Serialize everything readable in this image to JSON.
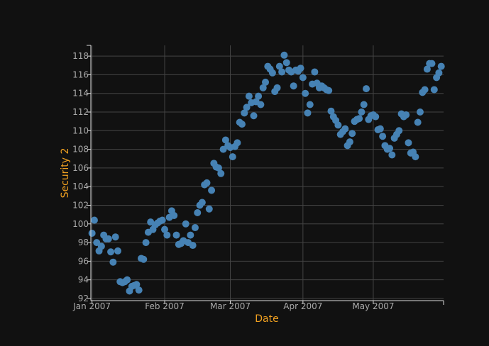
{
  "chart_data": {
    "type": "scatter",
    "xlabel": "Date",
    "ylabel": "Security 2",
    "xlim": [
      "2006-12-31T12:00:00",
      "2007-05-31T00:00:00"
    ],
    "ylim": [
      91.77,
      119.15
    ],
    "grid": true,
    "colors": {
      "background": "#111111",
      "point": "#4682b4",
      "axis_title": "#f0a020",
      "tick": "#aaaaaa",
      "grid": "#444444"
    },
    "x_ticks": [
      {
        "date": "2007-01-01",
        "label": "Jan 2007"
      },
      {
        "date": "2007-02-01",
        "label": "Feb 2007"
      },
      {
        "date": "2007-03-01",
        "label": "Mar 2007"
      },
      {
        "date": "2007-04-01",
        "label": "Apr 2007"
      },
      {
        "date": "2007-05-01",
        "label": "May 2007"
      }
    ],
    "y_ticks": [
      {
        "value": 92,
        "label": "92"
      },
      {
        "value": 94,
        "label": "94"
      },
      {
        "value": 96,
        "label": "96"
      },
      {
        "value": 98,
        "label": "98"
      },
      {
        "value": 100,
        "label": "100"
      },
      {
        "value": 102,
        "label": "102"
      },
      {
        "value": 104,
        "label": "104"
      },
      {
        "value": 106,
        "label": "106"
      },
      {
        "value": 108,
        "label": "108"
      },
      {
        "value": 110,
        "label": "110"
      },
      {
        "value": 112,
        "label": "112"
      },
      {
        "value": 114,
        "label": "114"
      },
      {
        "value": 116,
        "label": "116"
      },
      {
        "value": 118,
        "label": "118"
      }
    ],
    "points": [
      [
        "2007-01-01",
        99.0
      ],
      [
        "2007-01-02",
        100.4
      ],
      [
        "2007-01-03",
        98.0
      ],
      [
        "2007-01-04",
        97.1
      ],
      [
        "2007-01-05",
        97.6
      ],
      [
        "2007-01-06",
        98.8
      ],
      [
        "2007-01-07",
        98.4
      ],
      [
        "2007-01-08",
        98.4
      ],
      [
        "2007-01-09",
        97.0
      ],
      [
        "2007-01-10",
        95.9
      ],
      [
        "2007-01-11",
        98.6
      ],
      [
        "2007-01-12",
        97.1
      ],
      [
        "2007-01-13",
        93.8
      ],
      [
        "2007-01-14",
        93.7
      ],
      [
        "2007-01-15",
        93.8
      ],
      [
        "2007-01-16",
        94.0
      ],
      [
        "2007-01-17",
        92.8
      ],
      [
        "2007-01-18",
        93.3
      ],
      [
        "2007-01-19",
        93.4
      ],
      [
        "2007-01-20",
        93.5
      ],
      [
        "2007-01-21",
        92.9
      ],
      [
        "2007-01-22",
        96.3
      ],
      [
        "2007-01-23",
        96.2
      ],
      [
        "2007-01-24",
        98.0
      ],
      [
        "2007-01-25",
        99.1
      ],
      [
        "2007-01-26",
        100.2
      ],
      [
        "2007-01-27",
        99.4
      ],
      [
        "2007-01-28",
        99.9
      ],
      [
        "2007-01-29",
        100.1
      ],
      [
        "2007-01-30",
        100.3
      ],
      [
        "2007-01-31",
        100.4
      ],
      [
        "2007-02-01",
        99.4
      ],
      [
        "2007-02-02",
        98.8
      ],
      [
        "2007-02-03",
        100.7
      ],
      [
        "2007-02-04",
        101.4
      ],
      [
        "2007-02-05",
        100.9
      ],
      [
        "2007-02-06",
        98.8
      ],
      [
        "2007-02-07",
        97.8
      ],
      [
        "2007-02-08",
        97.9
      ],
      [
        "2007-02-09",
        98.2
      ],
      [
        "2007-02-10",
        100.0
      ],
      [
        "2007-02-11",
        98.0
      ],
      [
        "2007-02-12",
        98.8
      ],
      [
        "2007-02-13",
        97.7
      ],
      [
        "2007-02-14",
        99.6
      ],
      [
        "2007-02-15",
        101.2
      ],
      [
        "2007-02-16",
        102.0
      ],
      [
        "2007-02-17",
        102.3
      ],
      [
        "2007-02-18",
        104.2
      ],
      [
        "2007-02-19",
        104.4
      ],
      [
        "2007-02-20",
        101.6
      ],
      [
        "2007-02-21",
        103.6
      ],
      [
        "2007-02-22",
        106.5
      ],
      [
        "2007-02-23",
        106.1
      ],
      [
        "2007-02-24",
        106.0
      ],
      [
        "2007-02-25",
        105.4
      ],
      [
        "2007-02-26",
        108.0
      ],
      [
        "2007-02-27",
        109.0
      ],
      [
        "2007-02-28",
        108.4
      ],
      [
        "2007-03-01",
        108.2
      ],
      [
        "2007-03-02",
        107.2
      ],
      [
        "2007-03-03",
        108.3
      ],
      [
        "2007-03-04",
        108.7
      ],
      [
        "2007-03-05",
        110.9
      ],
      [
        "2007-03-06",
        110.7
      ],
      [
        "2007-03-07",
        111.9
      ],
      [
        "2007-03-08",
        112.5
      ],
      [
        "2007-03-09",
        113.7
      ],
      [
        "2007-03-10",
        113.0
      ],
      [
        "2007-03-11",
        111.6
      ],
      [
        "2007-03-12",
        113.1
      ],
      [
        "2007-03-13",
        113.7
      ],
      [
        "2007-03-14",
        112.8
      ],
      [
        "2007-03-15",
        114.6
      ],
      [
        "2007-03-16",
        115.2
      ],
      [
        "2007-03-17",
        116.9
      ],
      [
        "2007-03-18",
        116.6
      ],
      [
        "2007-03-19",
        116.2
      ],
      [
        "2007-03-20",
        114.2
      ],
      [
        "2007-03-21",
        114.6
      ],
      [
        "2007-03-22",
        116.9
      ],
      [
        "2007-03-23",
        116.3
      ],
      [
        "2007-03-24",
        118.1
      ],
      [
        "2007-03-25",
        117.3
      ],
      [
        "2007-03-26",
        116.5
      ],
      [
        "2007-03-27",
        116.3
      ],
      [
        "2007-03-28",
        114.8
      ],
      [
        "2007-03-29",
        116.5
      ],
      [
        "2007-03-30",
        116.4
      ],
      [
        "2007-03-31",
        116.7
      ],
      [
        "2007-04-01",
        115.7
      ],
      [
        "2007-04-02",
        114.0
      ],
      [
        "2007-04-03",
        111.9
      ],
      [
        "2007-04-04",
        112.8
      ],
      [
        "2007-04-05",
        115.0
      ],
      [
        "2007-04-06",
        116.3
      ],
      [
        "2007-04-07",
        115.1
      ],
      [
        "2007-04-08",
        114.6
      ],
      [
        "2007-04-09",
        114.8
      ],
      [
        "2007-04-10",
        114.6
      ],
      [
        "2007-04-11",
        114.4
      ],
      [
        "2007-04-12",
        114.3
      ],
      [
        "2007-04-13",
        112.1
      ],
      [
        "2007-04-14",
        111.5
      ],
      [
        "2007-04-15",
        111.1
      ],
      [
        "2007-04-16",
        110.6
      ],
      [
        "2007-04-17",
        109.6
      ],
      [
        "2007-04-18",
        109.9
      ],
      [
        "2007-04-19",
        110.2
      ],
      [
        "2007-04-20",
        108.4
      ],
      [
        "2007-04-21",
        108.8
      ],
      [
        "2007-04-22",
        109.7
      ],
      [
        "2007-04-23",
        111.0
      ],
      [
        "2007-04-24",
        111.2
      ],
      [
        "2007-04-25",
        111.3
      ],
      [
        "2007-04-26",
        112.0
      ],
      [
        "2007-04-27",
        112.8
      ],
      [
        "2007-04-28",
        114.5
      ],
      [
        "2007-04-29",
        111.2
      ],
      [
        "2007-04-30",
        111.6
      ],
      [
        "2007-05-01",
        111.7
      ],
      [
        "2007-05-02",
        111.5
      ],
      [
        "2007-05-03",
        110.1
      ],
      [
        "2007-05-04",
        110.2
      ],
      [
        "2007-05-05",
        109.4
      ],
      [
        "2007-05-06",
        108.4
      ],
      [
        "2007-05-07",
        108.0
      ],
      [
        "2007-05-08",
        108.1
      ],
      [
        "2007-05-09",
        107.4
      ],
      [
        "2007-05-10",
        109.2
      ],
      [
        "2007-05-11",
        109.6
      ],
      [
        "2007-05-12",
        110.0
      ],
      [
        "2007-05-13",
        111.8
      ],
      [
        "2007-05-14",
        111.5
      ],
      [
        "2007-05-15",
        111.7
      ],
      [
        "2007-05-16",
        108.7
      ],
      [
        "2007-05-17",
        107.6
      ],
      [
        "2007-05-18",
        107.7
      ],
      [
        "2007-05-19",
        107.2
      ],
      [
        "2007-05-20",
        110.9
      ],
      [
        "2007-05-21",
        112.0
      ],
      [
        "2007-05-22",
        114.1
      ],
      [
        "2007-05-23",
        114.4
      ],
      [
        "2007-05-24",
        116.6
      ],
      [
        "2007-05-25",
        117.2
      ],
      [
        "2007-05-26",
        117.2
      ],
      [
        "2007-05-27",
        114.4
      ],
      [
        "2007-05-28",
        115.7
      ],
      [
        "2007-05-29",
        116.2
      ],
      [
        "2007-05-30",
        116.9
      ]
    ]
  }
}
